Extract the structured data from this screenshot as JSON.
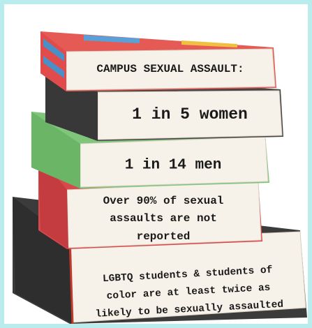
{
  "books": [
    {
      "lines": [
        "CAMPUS SEXUAL ASSAULT:"
      ]
    },
    {
      "lines": [
        "1 in 5 women"
      ]
    },
    {
      "lines": [
        "1 in 14 men"
      ]
    },
    {
      "lines": [
        "Over 90% of sexual",
        "assaults are not",
        "reported"
      ]
    },
    {
      "lines": [
        "LGBTQ students & students of",
        "color are at least twice as",
        "likely to be sexually assaulted"
      ]
    }
  ]
}
